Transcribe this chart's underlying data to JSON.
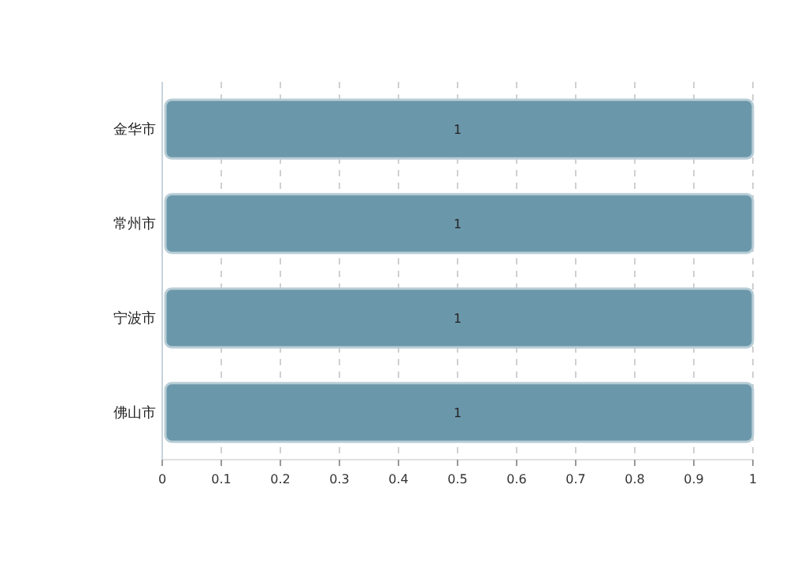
{
  "chart_data": {
    "type": "bar",
    "orientation": "horizontal",
    "categories": [
      "金华市",
      "常州市",
      "宁波市",
      "佛山市"
    ],
    "values": [
      1,
      1,
      1,
      1
    ],
    "color": "#6b97aa",
    "xlim": [
      0,
      1
    ],
    "xticks": [
      0,
      0.1,
      0.2,
      0.3,
      0.4,
      0.5,
      0.6,
      0.7,
      0.8,
      0.9,
      1
    ],
    "grid": "x",
    "data_labels": true
  }
}
